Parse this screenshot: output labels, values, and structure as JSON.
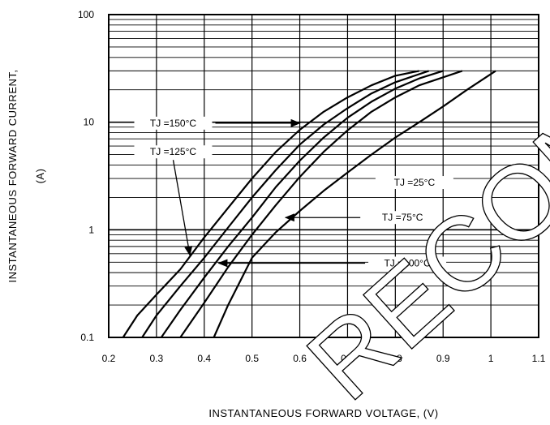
{
  "chart_data": {
    "type": "line",
    "y_scale": "log",
    "xlim": [
      0.2,
      1.1
    ],
    "ylim": [
      0.1,
      100
    ],
    "x_ticks": [
      "0.2",
      "0.3",
      "0.4",
      "0.5",
      "0.6",
      "0.7",
      "0.8",
      "0.9",
      "1",
      "1.1"
    ],
    "y_ticks": [
      "0.1",
      "1",
      "10",
      "100"
    ],
    "xlabel": "INSTANTANEOUS FORWARD VOLTAGE, (V)",
    "ylabel_line1": "INSTANTANEOUS FORWARD CURRENT,",
    "ylabel_line2": "(A)",
    "grid": true,
    "series": [
      {
        "name": "TJ =150°C",
        "x": [
          0.23,
          0.26,
          0.3,
          0.35,
          0.4,
          0.45,
          0.5,
          0.55,
          0.6,
          0.65,
          0.7,
          0.75,
          0.8,
          0.85
        ],
        "y": [
          0.1,
          0.16,
          0.25,
          0.43,
          0.85,
          1.6,
          3.0,
          5.3,
          8.5,
          12.5,
          17,
          22,
          27,
          30
        ]
      },
      {
        "name": "TJ =125°C",
        "x": [
          0.27,
          0.3,
          0.35,
          0.4,
          0.45,
          0.5,
          0.55,
          0.6,
          0.65,
          0.7,
          0.75,
          0.8,
          0.87
        ],
        "y": [
          0.1,
          0.16,
          0.3,
          0.55,
          1.05,
          2.0,
          3.6,
          6.2,
          9.5,
          13.5,
          18.5,
          23.5,
          30
        ]
      },
      {
        "name": "TJ =100°C",
        "x": [
          0.31,
          0.35,
          0.4,
          0.45,
          0.5,
          0.55,
          0.6,
          0.65,
          0.7,
          0.75,
          0.8,
          0.85,
          0.9
        ],
        "y": [
          0.1,
          0.18,
          0.36,
          0.7,
          1.3,
          2.5,
          4.4,
          7.2,
          11,
          15.5,
          20.5,
          25.5,
          30
        ]
      },
      {
        "name": "TJ =75°C",
        "x": [
          0.35,
          0.4,
          0.45,
          0.5,
          0.55,
          0.6,
          0.65,
          0.7,
          0.75,
          0.8,
          0.85,
          0.94
        ],
        "y": [
          0.1,
          0.21,
          0.45,
          0.9,
          1.7,
          3.1,
          5.3,
          8.4,
          12.5,
          17,
          22,
          30
        ]
      },
      {
        "name": "TJ =25°C",
        "x": [
          0.42,
          0.45,
          0.5,
          0.55,
          0.6,
          0.65,
          0.7,
          0.75,
          0.8,
          0.85,
          0.9,
          0.95,
          1.01
        ],
        "y": [
          0.1,
          0.2,
          0.55,
          0.95,
          1.5,
          2.3,
          3.4,
          5.0,
          7.2,
          10,
          14,
          20,
          30
        ]
      }
    ],
    "annotations": [
      {
        "text": "TJ =150°C",
        "tx": 0.335,
        "ty": 9.8,
        "ax": 0.6,
        "ay": 9.8
      },
      {
        "text": "TJ =125°C",
        "tx": 0.335,
        "ty": 5.3,
        "ax": 0.37,
        "ay": 0.58
      },
      {
        "text": "TJ =25°C",
        "tx": 0.84,
        "ty": 2.75,
        "ax": null,
        "ay": null
      },
      {
        "text": "TJ =75°C",
        "tx": 0.815,
        "ty": 1.3,
        "ax": 0.57,
        "ay": 1.3
      },
      {
        "text": "TJ =100°C",
        "tx": 0.825,
        "ty": 0.49,
        "ax": 0.43,
        "ay": 0.49
      }
    ]
  },
  "watermark": "RECOMMENDED"
}
